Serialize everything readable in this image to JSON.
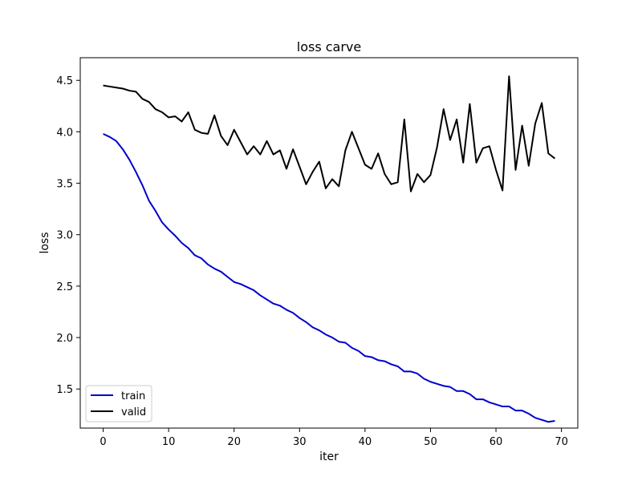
{
  "chart_data": {
    "type": "line",
    "title": "loss carve",
    "xlabel": "iter",
    "ylabel": "loss",
    "xlim": [
      -3.5,
      72.5
    ],
    "ylim": [
      1.12,
      4.72
    ],
    "xticks": [
      0,
      10,
      20,
      30,
      40,
      50,
      60,
      70
    ],
    "yticks": [
      1.5,
      2.0,
      2.5,
      3.0,
      3.5,
      4.0,
      4.5
    ],
    "ytick_labels": [
      "1.5",
      "2.0",
      "2.5",
      "3.0",
      "3.5",
      "4.0",
      "4.5"
    ],
    "grid": false,
    "legend": "lower-left",
    "x": [
      0,
      1,
      2,
      3,
      4,
      5,
      6,
      7,
      8,
      9,
      10,
      11,
      12,
      13,
      14,
      15,
      16,
      17,
      18,
      19,
      20,
      21,
      22,
      23,
      24,
      25,
      26,
      27,
      28,
      29,
      30,
      31,
      32,
      33,
      34,
      35,
      36,
      37,
      38,
      39,
      40,
      41,
      42,
      43,
      44,
      45,
      46,
      47,
      48,
      49,
      50,
      51,
      52,
      53,
      54,
      55,
      56,
      57,
      58,
      59,
      60,
      61,
      62,
      63,
      64,
      65,
      66,
      67,
      68,
      69
    ],
    "series": [
      {
        "name": "train",
        "color": "#0000cc",
        "values": [
          3.98,
          3.95,
          3.91,
          3.83,
          3.73,
          3.61,
          3.48,
          3.33,
          3.23,
          3.12,
          3.05,
          2.99,
          2.92,
          2.87,
          2.8,
          2.77,
          2.71,
          2.67,
          2.64,
          2.59,
          2.54,
          2.52,
          2.49,
          2.46,
          2.41,
          2.37,
          2.33,
          2.31,
          2.27,
          2.24,
          2.19,
          2.15,
          2.1,
          2.07,
          2.03,
          2.0,
          1.96,
          1.95,
          1.9,
          1.87,
          1.82,
          1.81,
          1.78,
          1.77,
          1.74,
          1.72,
          1.67,
          1.67,
          1.65,
          1.6,
          1.57,
          1.55,
          1.53,
          1.52,
          1.48,
          1.48,
          1.45,
          1.4,
          1.4,
          1.37,
          1.35,
          1.33,
          1.33,
          1.29,
          1.29,
          1.26,
          1.22,
          1.2,
          1.18,
          1.19
        ]
      },
      {
        "name": "valid",
        "color": "#000000",
        "values": [
          4.45,
          4.44,
          4.43,
          4.42,
          4.4,
          4.39,
          4.32,
          4.29,
          4.22,
          4.19,
          4.14,
          4.15,
          4.1,
          4.19,
          4.02,
          3.99,
          3.98,
          4.16,
          3.96,
          3.87,
          4.02,
          3.9,
          3.78,
          3.86,
          3.78,
          3.91,
          3.78,
          3.82,
          3.64,
          3.83,
          3.66,
          3.49,
          3.61,
          3.71,
          3.45,
          3.54,
          3.47,
          3.82,
          4.0,
          3.84,
          3.68,
          3.64,
          3.79,
          3.59,
          3.49,
          3.51,
          4.12,
          3.42,
          3.59,
          3.51,
          3.58,
          3.85,
          4.22,
          3.92,
          4.12,
          3.7,
          4.27,
          3.7,
          3.84,
          3.86,
          3.63,
          3.43,
          4.54,
          3.63,
          4.06,
          3.67,
          4.08,
          4.28,
          3.79,
          3.74
        ]
      }
    ]
  }
}
